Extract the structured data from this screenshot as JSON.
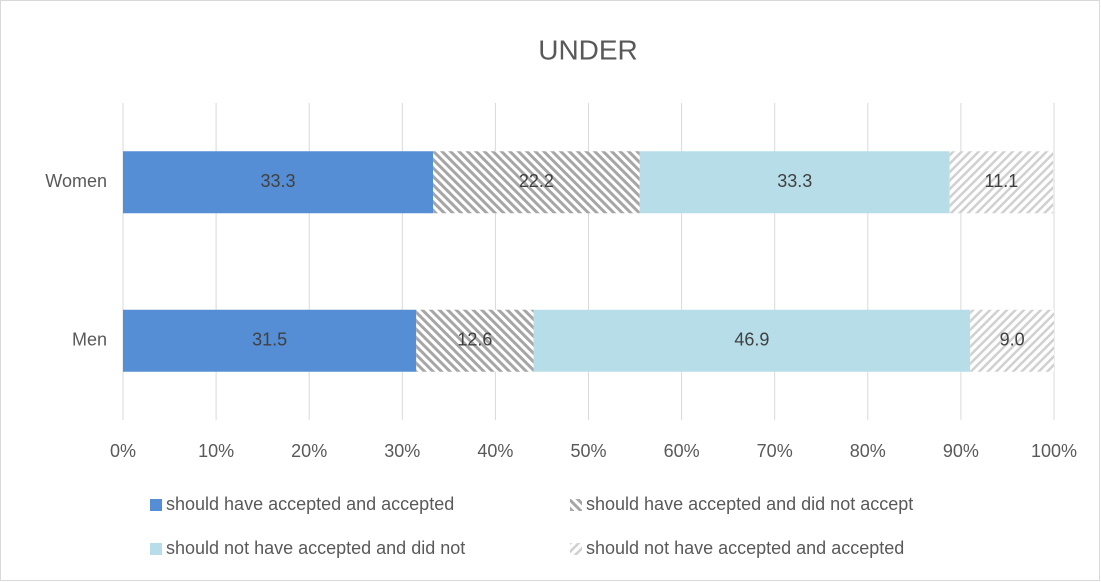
{
  "chart_data": {
    "type": "bar",
    "orientation": "horizontal",
    "stacked": true,
    "title": "UNDER",
    "categories": [
      "Women",
      "Men"
    ],
    "series": [
      {
        "name": "should have accepted and accepted",
        "color": "#558ed5",
        "pattern": "solid",
        "values": [
          33.3,
          31.5
        ]
      },
      {
        "name": "should have accepted and did not accept",
        "color": "#a6a6a6",
        "pattern": "hatch-back",
        "values": [
          22.2,
          12.6
        ]
      },
      {
        "name": "should not have accepted and did not",
        "color": "#b7dee8",
        "pattern": "solid",
        "values": [
          33.3,
          46.9
        ]
      },
      {
        "name": "should not have accepted and accepted",
        "color": "#d0d0d0",
        "pattern": "hatch-forward",
        "values": [
          11.1,
          9.0
        ],
        "value_labels": [
          "11.1",
          "9.0"
        ]
      }
    ],
    "xlim": [
      0,
      100
    ],
    "xticks": [
      {
        "value": 0,
        "label": "0%"
      },
      {
        "value": 10,
        "label": "10%"
      },
      {
        "value": 20,
        "label": "20%"
      },
      {
        "value": 30,
        "label": "30%"
      },
      {
        "value": 40,
        "label": "40%"
      },
      {
        "value": 50,
        "label": "50%"
      },
      {
        "value": 60,
        "label": "60%"
      },
      {
        "value": 70,
        "label": "70%"
      },
      {
        "value": 80,
        "label": "80%"
      },
      {
        "value": 90,
        "label": "90%"
      },
      {
        "value": 100,
        "label": "100%"
      }
    ],
    "grid": true,
    "legend": "bottom"
  }
}
